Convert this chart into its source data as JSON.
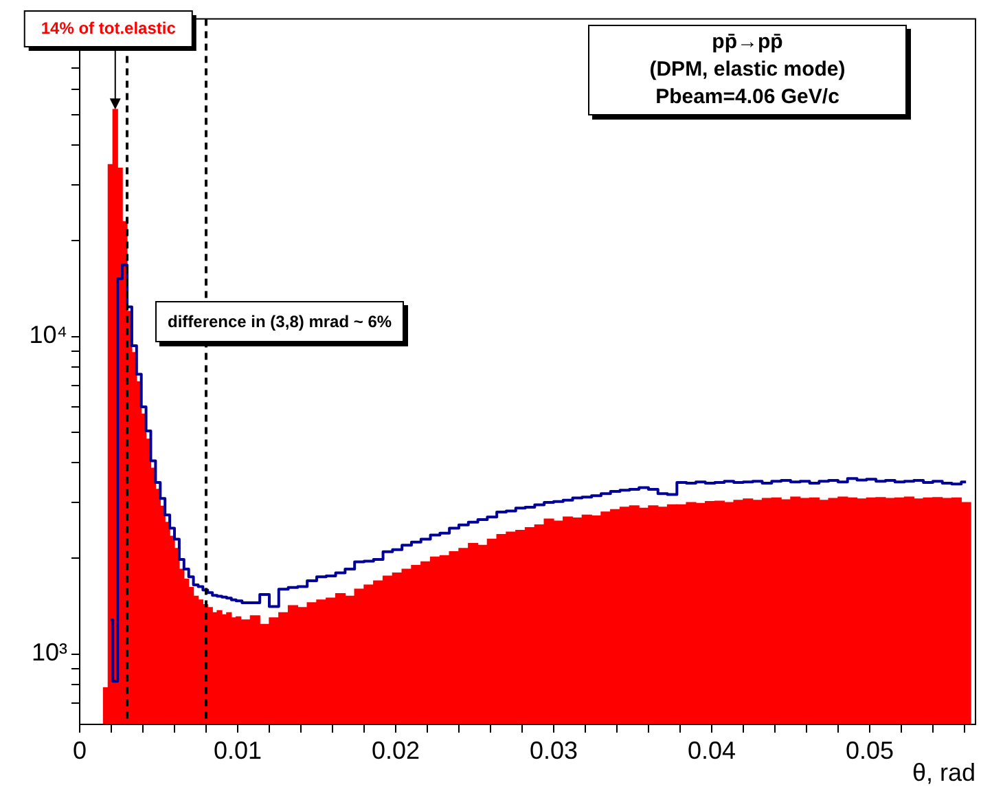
{
  "chart_data": {
    "type": "histogram",
    "title": "pp̄→pp̄",
    "subtitle": "(DPM, elastic mode)",
    "xlabel": "θ, rad",
    "bins": [
      0.0015,
      0.0018,
      0.0021,
      0.0024,
      0.0027,
      0.003,
      0.0033,
      0.0036,
      0.0039,
      0.0042,
      0.0045,
      0.0048,
      0.0051,
      0.0054,
      0.0057,
      0.006,
      0.0063,
      0.0066,
      0.0069,
      0.0072,
      0.0075,
      0.0078,
      0.0081,
      0.0084,
      0.0087,
      0.009,
      0.0093,
      0.0096,
      0.0099,
      0.0102,
      0.0108,
      0.0114,
      0.012,
      0.0126,
      0.0132,
      0.0138,
      0.0144,
      0.015,
      0.0156,
      0.0162,
      0.0168,
      0.0174,
      0.018,
      0.0186,
      0.0192,
      0.0198,
      0.0204,
      0.021,
      0.0216,
      0.0222,
      0.0228,
      0.0234,
      0.024,
      0.0246,
      0.0252,
      0.0258,
      0.0264,
      0.027,
      0.0276,
      0.0282,
      0.0288,
      0.0294,
      0.03,
      0.0306,
      0.0312,
      0.0318,
      0.0324,
      0.033,
      0.0336,
      0.0342,
      0.0348,
      0.0354,
      0.036,
      0.0366,
      0.0372,
      0.0378,
      0.0384,
      0.039,
      0.0396,
      0.0402,
      0.0408,
      0.0414,
      0.042,
      0.0426,
      0.0432,
      0.0438,
      0.0444,
      0.045,
      0.0456,
      0.0462,
      0.0468,
      0.0474,
      0.048,
      0.0486,
      0.0492,
      0.0498,
      0.0504,
      0.051,
      0.0516,
      0.0522,
      0.0528,
      0.0534,
      0.054,
      0.0546,
      0.0552,
      0.0558,
      0.0564
    ],
    "series": [
      {
        "color": "#ff0000",
        "values": [
          783,
          34800,
          51900,
          33900,
          23000,
          12000,
          8900,
          7200,
          5700,
          4750,
          3850,
          3300,
          2920,
          2600,
          2350,
          2150,
          1850,
          1720,
          1620,
          1520,
          1480,
          1430,
          1400,
          1350,
          1370,
          1330,
          1350,
          1300,
          1310,
          1280,
          1320,
          1240,
          1300,
          1350,
          1420,
          1400,
          1450,
          1480,
          1500,
          1550,
          1520,
          1600,
          1650,
          1700,
          1760,
          1800,
          1850,
          1900,
          1950,
          2020,
          2040,
          2100,
          2150,
          2230,
          2200,
          2300,
          2380,
          2420,
          2450,
          2500,
          2550,
          2660,
          2620,
          2700,
          2680,
          2740,
          2720,
          2800,
          2850,
          2900,
          2930,
          2880,
          2930,
          2900,
          2950,
          2950,
          3000,
          2980,
          3020,
          3030,
          3000,
          3050,
          3080,
          3050,
          3090,
          3100,
          3060,
          3120,
          3090,
          3100,
          3050,
          3090,
          3120,
          3100,
          3080,
          3100,
          3110,
          3090,
          3100,
          3120,
          3080,
          3100,
          3110,
          3090,
          3100,
          3000
        ]
      },
      {
        "type": "step",
        "color": "#000099",
        "x": [
          0.00195,
          0.00225,
          0.00255,
          0.00285,
          0.00315,
          0.00345,
          0.00375,
          0.00405,
          0.00435,
          0.00465,
          0.00495,
          0.00525,
          0.00555,
          0.00585,
          0.00615,
          0.00645,
          0.00675,
          0.00705,
          0.00735,
          0.00765,
          0.00795,
          0.00825,
          0.00855,
          0.00885,
          0.00915,
          0.00945,
          0.00975,
          0.01005,
          0.0105,
          0.0111,
          0.0117,
          0.0123,
          0.0129,
          0.0135,
          0.0141,
          0.0147,
          0.0153,
          0.0159,
          0.0165,
          0.0171,
          0.0177,
          0.0183,
          0.0189,
          0.0195,
          0.0201,
          0.0207,
          0.0213,
          0.0219,
          0.0225,
          0.0231,
          0.0237,
          0.0243,
          0.0249,
          0.0255,
          0.0261,
          0.0267,
          0.0273,
          0.0279,
          0.0285,
          0.0291,
          0.0297,
          0.0303,
          0.0309,
          0.0315,
          0.0321,
          0.0327,
          0.0333,
          0.0339,
          0.0345,
          0.0351,
          0.0357,
          0.0363,
          0.0369,
          0.0375,
          0.0381,
          0.0387,
          0.0393,
          0.0399,
          0.0405,
          0.0411,
          0.0417,
          0.0423,
          0.0429,
          0.0435,
          0.0441,
          0.0447,
          0.0453,
          0.0459,
          0.0465,
          0.0471,
          0.0477,
          0.0483,
          0.0489,
          0.0495,
          0.0501,
          0.0507,
          0.0513,
          0.0519,
          0.0525,
          0.0531,
          0.0537,
          0.0543,
          0.0549,
          0.0555,
          0.0561
        ],
        "values": [
          1280,
          820,
          15200,
          16800,
          12400,
          9350,
          7600,
          6000,
          5040,
          4060,
          3470,
          3090,
          2740,
          2490,
          2300,
          1985,
          1850,
          1750,
          1650,
          1630,
          1590,
          1560,
          1530,
          1520,
          1510,
          1500,
          1480,
          1470,
          1450,
          1450,
          1540,
          1410,
          1600,
          1620,
          1630,
          1700,
          1750,
          1760,
          1800,
          1850,
          1950,
          1960,
          1985,
          2100,
          2130,
          2200,
          2250,
          2300,
          2370,
          2400,
          2490,
          2550,
          2600,
          2650,
          2700,
          2800,
          2820,
          2880,
          2900,
          2950,
          3000,
          3020,
          3050,
          3100,
          3120,
          3150,
          3200,
          3250,
          3280,
          3300,
          3340,
          3300,
          3200,
          3180,
          3470,
          3450,
          3480,
          3450,
          3470,
          3500,
          3470,
          3480,
          3500,
          3450,
          3500,
          3520,
          3480,
          3500,
          3450,
          3500,
          3520,
          3480,
          3570,
          3530,
          3550,
          3500,
          3520,
          3480,
          3500,
          3520,
          3470,
          3500,
          3450,
          3430,
          3480
        ]
      }
    ],
    "xlim": [
      0,
      0.0567
    ],
    "xticks": [
      0,
      {
        "value": 0.002,
        "label": null
      },
      {
        "value": 0.004,
        "label": null
      },
      {
        "value": 0.006,
        "label": null
      },
      {
        "value": 0.008,
        "label": null
      },
      0.01,
      {
        "value": 0.012,
        "label": null
      },
      {
        "value": 0.014,
        "label": null
      },
      {
        "value": 0.016,
        "label": null
      },
      {
        "value": 0.018,
        "label": null
      },
      0.02,
      {
        "value": 0.022,
        "label": null
      },
      {
        "value": 0.024,
        "label": null
      },
      {
        "value": 0.026,
        "label": null
      },
      {
        "value": 0.028,
        "label": null
      },
      0.03,
      {
        "value": 0.032,
        "label": null
      },
      {
        "value": 0.034,
        "label": null
      },
      {
        "value": 0.036,
        "label": null
      },
      {
        "value": 0.038,
        "label": null
      },
      0.04,
      {
        "value": 0.042,
        "label": null
      },
      {
        "value": 0.044,
        "label": null
      },
      {
        "value": 0.046,
        "label": null
      },
      {
        "value": 0.048,
        "label": null
      },
      0.05,
      {
        "value": 0.052,
        "label": null
      },
      {
        "value": 0.054,
        "label": null
      },
      {
        "value": 0.056,
        "label": null
      }
    ],
    "ylim": [
      600,
      100000
    ],
    "yticks": [
      {
        "value": 700,
        "label": null
      },
      {
        "value": 800,
        "label": null
      },
      {
        "value": 900,
        "label": null
      },
      {
        "value": 1000,
        "label": "10³"
      },
      {
        "value": 2000,
        "label": null
      },
      {
        "value": 3000,
        "label": null
      },
      {
        "value": 4000,
        "label": null
      },
      {
        "value": 5000,
        "label": null
      },
      {
        "value": 6000,
        "label": null
      },
      {
        "value": 7000,
        "label": null
      },
      {
        "value": 8000,
        "label": null
      },
      {
        "value": 9000,
        "label": null
      },
      {
        "value": 10000,
        "label": "10⁴"
      },
      {
        "value": 20000,
        "label": null
      },
      {
        "value": 30000,
        "label": null
      },
      {
        "value": 40000,
        "label": null
      },
      {
        "value": 50000,
        "label": null
      },
      {
        "value": 60000,
        "label": null
      },
      {
        "value": 70000,
        "label": null
      },
      {
        "value": 80000,
        "label": null
      },
      {
        "value": 90000,
        "label": null
      }
    ],
    "log": "y",
    "ref_lines": [
      {
        "axis": "x",
        "value": 0.003,
        "color": "#000000",
        "line_style": "dashed"
      },
      {
        "axis": "x",
        "value": 0.008,
        "color": "#000000",
        "line_style": "dashed"
      }
    ],
    "annotations": [
      {
        "text": "14% of tot.elastic",
        "x": 0.00225,
        "y": 51900
      },
      "difference in (3,8) mrad ~ 6%",
      "Pbeam=4.06 GeV/c"
    ]
  }
}
